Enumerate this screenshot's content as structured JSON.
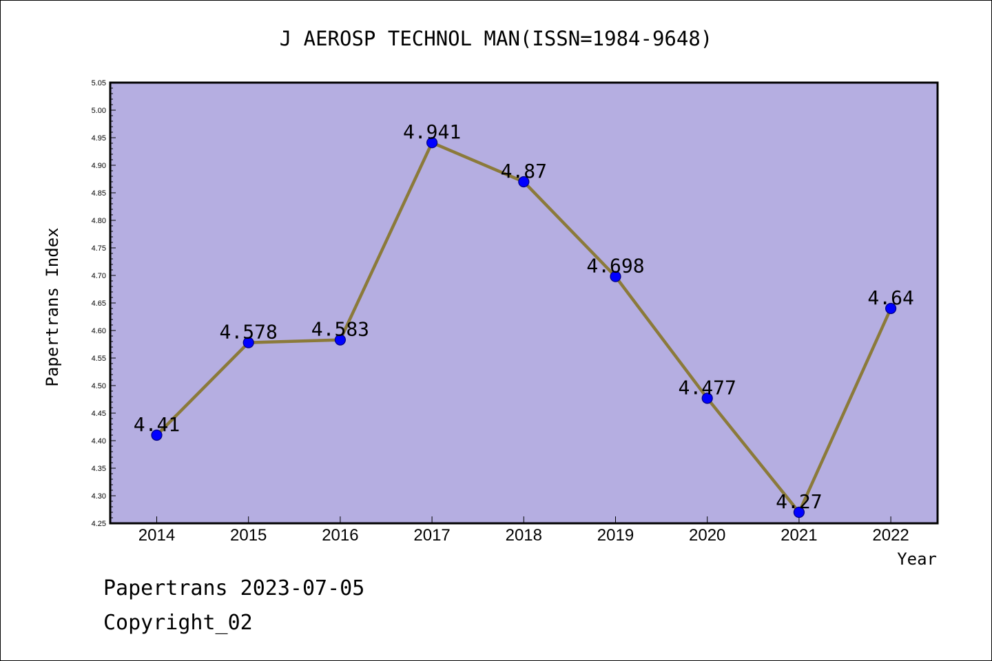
{
  "footer": {
    "date_line": "Papertrans 2023-07-05",
    "copyright": "Copyright_02"
  },
  "colors": {
    "plot_background": "#b5aee1",
    "line": "#8b7a3a",
    "marker": "#0000ff",
    "marker_edge": "#000080"
  },
  "chart_data": {
    "type": "line",
    "title": "J AEROSP TECHNOL MAN(ISSN=1984-9648)",
    "xlabel": "Year",
    "ylabel": "Papertrans Index",
    "categories": [
      "2014",
      "2015",
      "2016",
      "2017",
      "2018",
      "2019",
      "2020",
      "2021",
      "2022"
    ],
    "series": [
      {
        "values": [
          4.41,
          4.578,
          4.583,
          4.941,
          4.87,
          4.698,
          4.477,
          4.27,
          4.64
        ],
        "labels": [
          "4.41",
          "4.578",
          "4.583",
          "4.941",
          "4.87",
          "4.698",
          "4.477",
          "4.27",
          "4.64"
        ]
      }
    ],
    "ylim": [
      4.25,
      5.05
    ],
    "yticks": [
      "4.25",
      "4.30",
      "4.35",
      "4.40",
      "4.45",
      "4.50",
      "4.55",
      "4.60",
      "4.65",
      "4.70",
      "4.75",
      "4.80",
      "4.85",
      "4.90",
      "4.95",
      "5.00",
      "5.05"
    ],
    "grid": false,
    "legend": "none"
  }
}
